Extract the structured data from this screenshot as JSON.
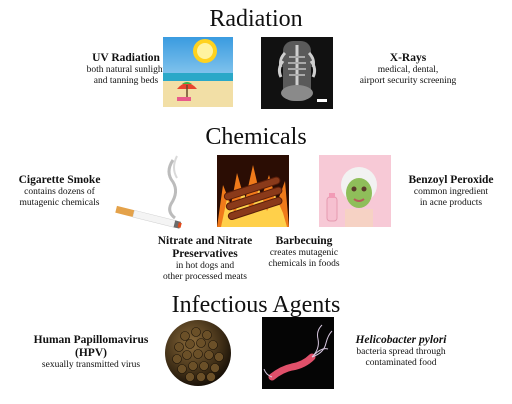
{
  "sections": {
    "radiation": "Radiation",
    "chemicals": "Chemicals",
    "infectious": "Infectious Agents"
  },
  "items": {
    "uv": {
      "name": "UV Radiation",
      "desc1": "both natural sunlight",
      "desc2": "and tanning beds"
    },
    "xray": {
      "name": "X-Rays",
      "desc1": "medical, dental,",
      "desc2": "airport security screening"
    },
    "smoke": {
      "name": "Cigarette Smoke",
      "desc1": "contains dozens of",
      "desc2": "mutagenic chemicals"
    },
    "nitrate": {
      "name1": "Nitrate and Nitrate",
      "name2": "Preservatives",
      "desc1": "in hot dogs and",
      "desc2": "other processed meats"
    },
    "bbq": {
      "name": "Barbecuing",
      "desc1": "creates mutagenic",
      "desc2": "chemicals in foods"
    },
    "benzoyl": {
      "name": "Benzoyl Peroxide",
      "desc1": "common ingredient",
      "desc2": "in acne products"
    },
    "hpv": {
      "name1": "Human Papillomavirus",
      "name2": "(HPV)",
      "desc": "sexually transmitted virus"
    },
    "hpylori": {
      "name": "Helicobacter pylori",
      "desc1": "bacteria spread through",
      "desc2": "contaminated food"
    }
  }
}
